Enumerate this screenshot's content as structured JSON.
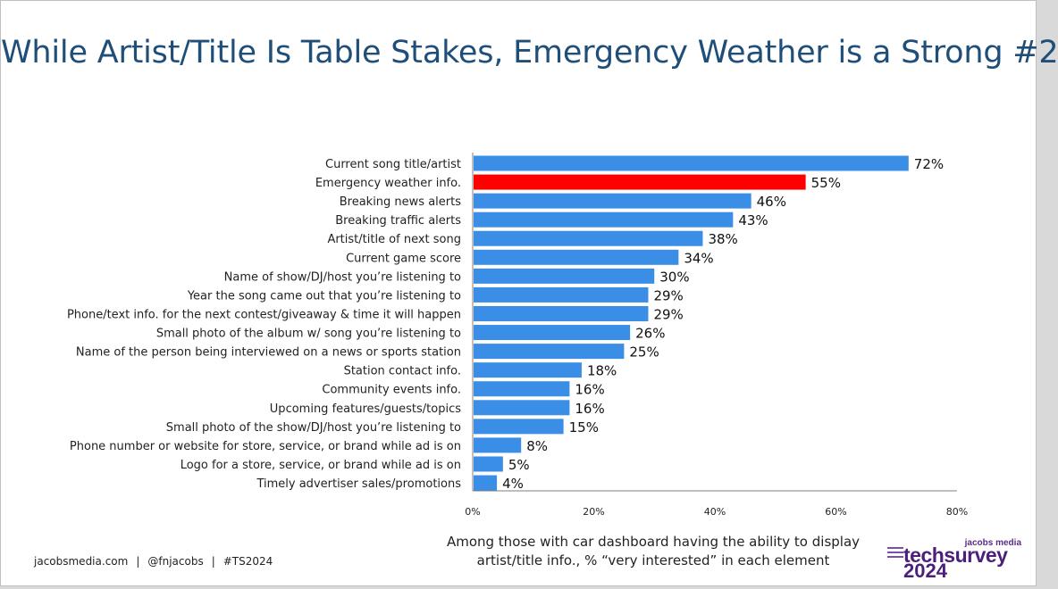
{
  "slide": {
    "title": "While Artist/Title Is Table Stakes, Emergency Weather is a Strong #2",
    "caption_line1": "Among those with car dashboard having the ability to display",
    "caption_line2": "artist/title info., % “very interested” in each element",
    "footer": {
      "site": "jacobsmedia.com",
      "separator": "|",
      "handle": "@fnjacobs",
      "hashtag": "#TS2024"
    },
    "logo": {
      "small_text": "jacobs media",
      "main_text": "techsurvey",
      "year": "2024"
    }
  },
  "chart_data": {
    "type": "bar",
    "orientation": "horizontal",
    "categories": [
      "Current song title/artist",
      "Emergency weather info.",
      "Breaking news alerts",
      "Breaking traffic alerts",
      "Artist/title of next song",
      "Current game score",
      "Name of show/DJ/host you’re listening to",
      "Year the song came out that you’re listening to",
      "Phone/text info. for the next contest/giveaway & time it will happen",
      "Small photo of the album w/ song you’re listening to",
      "Name of the person being interviewed on a news or sports station",
      "Station contact info.",
      "Community events info.",
      "Upcoming features/guests/topics",
      "Small photo of the show/DJ/host you’re listening to",
      "Phone number or website for store, service, or brand while ad is on",
      "Logo for a store, service, or brand while ad is on",
      "Timely advertiser sales/promotions"
    ],
    "values": [
      72,
      55,
      46,
      43,
      38,
      34,
      30,
      29,
      29,
      26,
      25,
      18,
      16,
      16,
      15,
      8,
      5,
      4
    ],
    "value_labels": [
      "72%",
      "55%",
      "46%",
      "43%",
      "38%",
      "34%",
      "30%",
      "29%",
      "29%",
      "26%",
      "25%",
      "18%",
      "16%",
      "16%",
      "15%",
      "8%",
      "5%",
      "4%"
    ],
    "xlim": [
      0,
      80
    ],
    "x_ticks": [
      0,
      20,
      40,
      60,
      80
    ],
    "x_tick_labels": [
      "0%",
      "20%",
      "40%",
      "60%",
      "80%"
    ],
    "grid": false,
    "bar_color": "#3a8ee6",
    "highlight_index": 1,
    "highlight_color": "#ff0000"
  }
}
